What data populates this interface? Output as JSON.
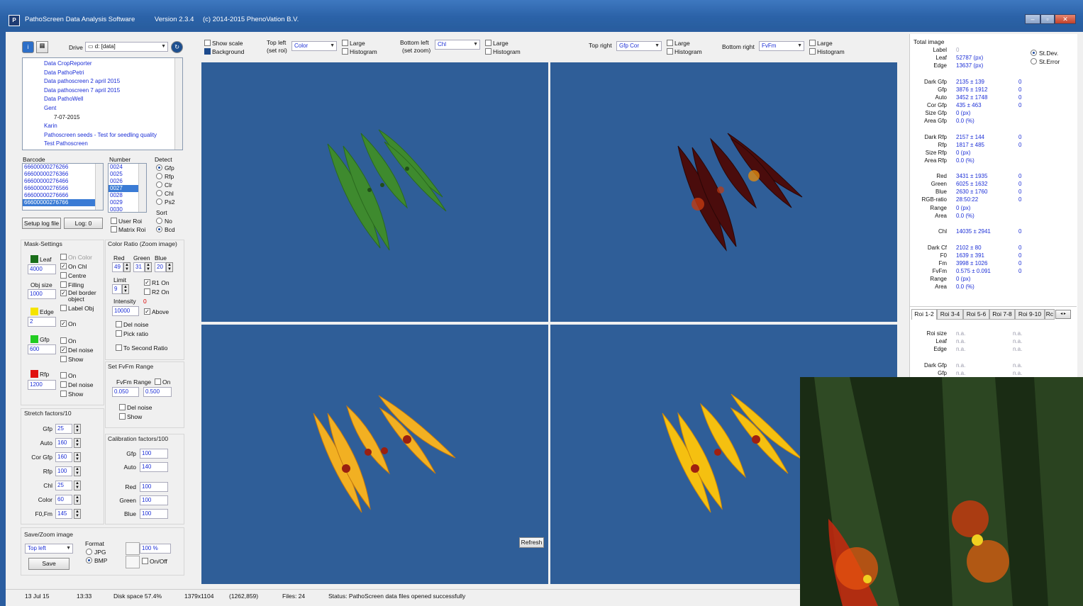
{
  "window": {
    "title": "PathoScreen Data Analysis Software",
    "version": "Version 2.3.4",
    "copyright": "(c) 2014-2015  PhenoVation B.V.",
    "icon_text": "P"
  },
  "drive": {
    "label": "Drive",
    "value": "d: [data]"
  },
  "tree": [
    {
      "label": "Data CropReporter",
      "indent": 1
    },
    {
      "label": "Data PathoPetri",
      "indent": 1
    },
    {
      "label": "Data pathoscreen 2 april 2015",
      "indent": 1
    },
    {
      "label": "Data pathoscreen 7 april 2015",
      "indent": 1
    },
    {
      "label": "Data PathoWell",
      "indent": 1
    },
    {
      "label": "Gent",
      "indent": 1
    },
    {
      "label": "7-07-2015",
      "indent": 2
    },
    {
      "label": "Karin",
      "indent": 1
    },
    {
      "label": "Pathoscreen seeds - Test for seedling quality",
      "indent": 1
    },
    {
      "label": "Test Pathoscreen",
      "indent": 1
    }
  ],
  "barcode": {
    "label": "Barcode",
    "items": [
      "66600000276266",
      "66600000276366",
      "66600000276466",
      "66600000276566",
      "66600000276666",
      "66600000276766"
    ],
    "selected": 5
  },
  "number": {
    "label": "Number",
    "items": [
      "0024",
      "0025",
      "0026",
      "0027",
      "0028",
      "0029",
      "0030"
    ],
    "selected": 3
  },
  "detect": {
    "label": "Detect",
    "options": [
      "Gfp",
      "Rfp",
      "Clr",
      "Chl",
      "Ps2"
    ],
    "selected": 0
  },
  "sort": {
    "label": "Sort",
    "options": [
      "No",
      "Bcd"
    ],
    "selected": 1
  },
  "buttons": {
    "setup_log": "Setup log file",
    "log": "Log: 0",
    "save": "Save",
    "refresh": "Refresh"
  },
  "roi_checks": {
    "user_roi": "User Roi",
    "matrix_roi": "Matrix Roi"
  },
  "mask": {
    "title": "Mask-Settings",
    "leaf_label": "Leaf",
    "leaf_value": "4000",
    "on_color": "On Color",
    "on_chl": "On Chl",
    "centre": "Centre",
    "filling": "Filling",
    "del_border": "Del border object",
    "label_obj": "Label Obj",
    "obj_size_label": "Obj size",
    "obj_size_value": "1000",
    "edge_label": "Edge",
    "edge_value": "2",
    "edge_on": "On",
    "gfp_label": "Gfp",
    "gfp_value": "600",
    "gfp_on": "On",
    "gfp_del_noise": "Del noise",
    "gfp_show": "Show",
    "rfp_label": "Rfp",
    "rfp_value": "1200",
    "rfp_on": "On",
    "rfp_del_noise": "Del noise",
    "rfp_show": "Show",
    "colors": {
      "leaf": "#1a6e1a",
      "edge": "#f5e400",
      "gfp": "#22cc22",
      "rfp": "#e01010"
    }
  },
  "color_ratio": {
    "title": "Color Ratio (Zoom image)",
    "red_label": "Red",
    "green_label": "Green",
    "blue_label": "Blue",
    "red": "49",
    "green": "31",
    "blue": "20",
    "limit_label": "Limit",
    "limit": "9",
    "r1_on": "R1 On",
    "r2_on": "R2 On",
    "intensity_label": "Intensity",
    "intensity_value": "0",
    "intensity_field": "10000",
    "above": "Above",
    "del_noise": "Del noise",
    "pick_ratio": "Pick ratio",
    "to_second": "To Second Ratio"
  },
  "fvfm": {
    "title": "Set FvFm Range",
    "range_label": "FvFm Range",
    "on": "On",
    "min": "0.050",
    "max": "0.500",
    "del_noise": "Del noise",
    "show": "Show"
  },
  "stretch": {
    "title": "Stretch factors/10",
    "items": [
      {
        "label": "Gfp",
        "value": "25"
      },
      {
        "label": "Auto",
        "value": "160"
      },
      {
        "label": "Cor Gfp",
        "value": "160"
      },
      {
        "label": "Rfp",
        "value": "100"
      },
      {
        "label": "Chl",
        "value": "25"
      },
      {
        "label": "Color",
        "value": "60"
      },
      {
        "label": "F0,Fm",
        "value": "145"
      }
    ]
  },
  "calibration": {
    "title": "Calibration factors/100",
    "items": [
      {
        "label": "Gfp",
        "value": "100"
      },
      {
        "label": "Auto",
        "value": "140"
      },
      {
        "label": "Red",
        "value": "100"
      },
      {
        "label": "Green",
        "value": "100"
      },
      {
        "label": "Blue",
        "value": "100"
      }
    ]
  },
  "save_zoom": {
    "title": "Save/Zoom image",
    "dropdown": "Top left",
    "format_label": "Format",
    "jpg": "JPG",
    "bmp": "BMP",
    "zoom": "100 %",
    "on_off": "On/Off"
  },
  "toolbar": {
    "show_scale": "Show scale",
    "background": "Background",
    "top_left_label": "Top left",
    "top_left_sub": "(set roi)",
    "top_left_value": "Color",
    "bottom_left_label": "Bottom left",
    "bottom_left_sub": "(set zoom)",
    "bottom_left_value": "Chl",
    "top_right_label": "Top right",
    "top_right_value": "Gfp Cor",
    "bottom_right_label": "Bottom right",
    "bottom_right_value": "FvFm",
    "large": "Large",
    "histogram": "Histogram"
  },
  "results": {
    "total_image": "Total image",
    "stdev": "St.Dev.",
    "sterror": "St.Error",
    "rows": [
      {
        "label": "Label",
        "value": "0",
        "extra": ""
      },
      {
        "label": "Leaf",
        "value": "52787 (px)",
        "extra": ""
      },
      {
        "label": "Edge",
        "value": "13637 (px)",
        "extra": ""
      },
      {
        "label": "Dark Gfp",
        "value": "2135 ± 139",
        "extra": "0"
      },
      {
        "label": "Gfp",
        "value": "3876 ± 1912",
        "extra": "0"
      },
      {
        "label": "Auto",
        "value": "3452 ± 1748",
        "extra": "0"
      },
      {
        "label": "Cor Gfp",
        "value": "435 ± 463",
        "extra": "0"
      },
      {
        "label": "Size Gfp",
        "value": "0 (px)",
        "extra": ""
      },
      {
        "label": "Area Gfp",
        "value": "0.0 (%)",
        "extra": ""
      },
      {
        "label": "Dark Rfp",
        "value": "2157 ± 144",
        "extra": "0"
      },
      {
        "label": "Rfp",
        "value": "1817 ± 485",
        "extra": "0"
      },
      {
        "label": "Size Rfp",
        "value": "0 (px)",
        "extra": ""
      },
      {
        "label": "Area Rfp",
        "value": "0.0 (%)",
        "extra": ""
      },
      {
        "label": "Red",
        "value": "3431 ± 1935",
        "extra": "0"
      },
      {
        "label": "Green",
        "value": "6025 ± 1632",
        "extra": "0"
      },
      {
        "label": "Blue",
        "value": "2630 ± 1760",
        "extra": "0"
      },
      {
        "label": "RGB-ratio",
        "value": "28:50:22",
        "extra": "0"
      },
      {
        "label": "Range",
        "value": "0 (px)",
        "extra": ""
      },
      {
        "label": "Area",
        "value": "0.0 (%)",
        "extra": ""
      },
      {
        "label": "Chl",
        "value": "14035 ± 2941",
        "extra": "0"
      },
      {
        "label": "Dark Cf",
        "value": "2102 ± 80",
        "extra": "0"
      },
      {
        "label": "F0",
        "value": "1639 ± 391",
        "extra": "0"
      },
      {
        "label": "Fm",
        "value": "3998 ± 1026",
        "extra": "0"
      },
      {
        "label": "FvFm",
        "value": "0.575 ± 0.091",
        "extra": "0"
      },
      {
        "label": "Range",
        "value": "0 (px)",
        "extra": ""
      },
      {
        "label": "Area",
        "value": "0.0 (%)",
        "extra": ""
      }
    ],
    "tabs": [
      "Roi 1-2",
      "Roi 3-4",
      "Roi 5-6",
      "Roi 7-8",
      "Roi 9-10",
      "Rc"
    ],
    "roi_rows": [
      {
        "label": "Roi  size",
        "a": "n.a.",
        "b": "n.a."
      },
      {
        "label": "Leaf",
        "a": "n.a.",
        "b": "n.a."
      },
      {
        "label": "Edge",
        "a": "n.a.",
        "b": "n.a."
      },
      {
        "label": "Dark Gfp",
        "a": "n.a.",
        "b": "n.a."
      },
      {
        "label": "Gfp",
        "a": "n.a.",
        "b": "n.a."
      }
    ]
  },
  "status": {
    "date": "13 Jul 15",
    "time": "13:33",
    "disk": "Disk space  57.4%",
    "size": "1379x1104",
    "coords": "(1262,859)",
    "files": "Files: 24",
    "message": "Status:  PathoScreen data files opened successfully"
  }
}
